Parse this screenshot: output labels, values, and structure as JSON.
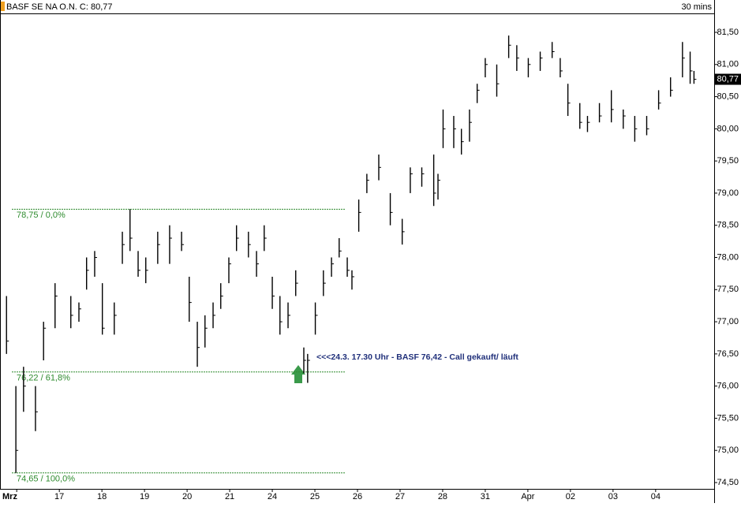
{
  "chart_data": {
    "type": "ohlc",
    "title": "BASF SE NA O.N. C: 80,77",
    "interval": "30 mins",
    "color": "#000000",
    "x": [
      0.06,
      0.28,
      0.46,
      0.74,
      0.93,
      1.2,
      1.57,
      1.76,
      1.94,
      2.13,
      2.31,
      2.59,
      2.78,
      2.96,
      3.15,
      3.33,
      3.61,
      3.89,
      4.17,
      4.35,
      4.54,
      4.72,
      4.91,
      5.09,
      5.28,
      5.46,
      5.74,
      5.93,
      6.11,
      6.3,
      6.48,
      6.67,
      6.85,
      7.04,
      7.13,
      7.31,
      7.5,
      7.69,
      7.87,
      8.06,
      8.17,
      8.33,
      8.52,
      8.8,
      9.07,
      9.35,
      9.54,
      9.81,
      10.09,
      10.19,
      10.31,
      10.56,
      10.74,
      10.93,
      11.11,
      11.3,
      11.57,
      11.85,
      12.04,
      12.31,
      12.59,
      12.87,
      13.06,
      13.24,
      13.52,
      13.7,
      13.98,
      14.26,
      14.54,
      14.81,
      15.09,
      15.37,
      15.65,
      15.93,
      16.11,
      16.2
    ],
    "high": [
      77.4,
      76.0,
      76.3,
      76.0,
      77.0,
      77.6,
      77.4,
      77.3,
      78.0,
      78.1,
      77.6,
      77.3,
      78.4,
      78.75,
      78.1,
      78.0,
      78.4,
      78.5,
      78.4,
      77.7,
      77.0,
      77.1,
      77.3,
      77.6,
      78.0,
      78.5,
      78.4,
      78.1,
      78.5,
      77.7,
      77.4,
      77.3,
      77.8,
      76.6,
      76.5,
      77.3,
      77.8,
      78.0,
      78.3,
      78.0,
      77.8,
      78.9,
      79.3,
      79.6,
      79.0,
      78.6,
      79.4,
      79.4,
      79.6,
      79.3,
      80.3,
      80.2,
      80.0,
      80.3,
      80.7,
      81.1,
      81.0,
      81.45,
      81.3,
      81.1,
      81.2,
      81.35,
      81.1,
      80.7,
      80.4,
      80.2,
      80.4,
      80.6,
      80.3,
      80.2,
      80.2,
      80.6,
      80.8,
      81.35,
      81.2,
      80.9
    ],
    "low": [
      76.5,
      74.65,
      75.6,
      75.3,
      76.4,
      76.9,
      76.9,
      77.0,
      77.5,
      77.7,
      76.8,
      76.8,
      77.9,
      78.1,
      77.7,
      77.6,
      77.9,
      77.9,
      78.1,
      77.0,
      76.3,
      76.6,
      76.9,
      77.2,
      77.6,
      78.1,
      78.0,
      77.7,
      78.1,
      77.2,
      76.8,
      76.9,
      77.4,
      76.2,
      76.05,
      76.8,
      77.4,
      77.7,
      78.0,
      77.7,
      77.5,
      78.4,
      79.0,
      79.2,
      78.5,
      78.2,
      79.0,
      79.1,
      78.8,
      78.9,
      79.7,
      79.7,
      79.6,
      79.8,
      80.4,
      80.8,
      80.5,
      81.1,
      80.9,
      80.8,
      80.9,
      81.1,
      80.8,
      80.2,
      80.0,
      79.95,
      80.1,
      80.1,
      80.0,
      79.8,
      79.9,
      80.3,
      80.5,
      80.8,
      80.7,
      80.7
    ],
    "close": [
      76.7,
      75.0,
      76.0,
      75.6,
      76.9,
      77.4,
      77.1,
      77.2,
      77.8,
      78.0,
      76.9,
      77.1,
      78.2,
      78.3,
      77.8,
      77.8,
      78.2,
      78.3,
      78.2,
      77.3,
      76.6,
      76.9,
      77.1,
      77.4,
      77.9,
      78.3,
      78.2,
      77.9,
      78.3,
      77.4,
      77.0,
      77.1,
      77.6,
      76.4,
      76.4,
      77.1,
      77.6,
      77.9,
      78.1,
      77.8,
      77.7,
      78.7,
      79.2,
      79.4,
      78.7,
      78.4,
      79.3,
      79.3,
      79.0,
      79.2,
      80.0,
      80.0,
      79.8,
      80.1,
      80.6,
      81.0,
      80.7,
      81.3,
      81.1,
      81.0,
      81.1,
      81.2,
      80.9,
      80.4,
      80.1,
      80.1,
      80.2,
      80.3,
      80.2,
      80.0,
      80.0,
      80.4,
      80.6,
      81.1,
      80.9,
      80.77
    ],
    "xlim": [
      0,
      16.6
    ],
    "xticks": [
      {
        "value": 0.3,
        "label": "Mrz"
      },
      {
        "value": 1.3,
        "label": "17"
      },
      {
        "value": 2.3,
        "label": "18"
      },
      {
        "value": 3.3,
        "label": "19"
      },
      {
        "value": 4.3,
        "label": "20"
      },
      {
        "value": 5.3,
        "label": "21"
      },
      {
        "value": 6.3,
        "label": "24"
      },
      {
        "value": 7.3,
        "label": "25"
      },
      {
        "value": 8.3,
        "label": "26"
      },
      {
        "value": 9.3,
        "label": "27"
      },
      {
        "value": 10.3,
        "label": "28"
      },
      {
        "value": 11.3,
        "label": "31"
      },
      {
        "value": 12.3,
        "label": "Apr"
      },
      {
        "value": 13.3,
        "label": "02"
      },
      {
        "value": 14.3,
        "label": "03"
      },
      {
        "value": 15.3,
        "label": "04"
      }
    ],
    "ylim": [
      74.5,
      81.5
    ],
    "yticks": [
      {
        "value": 74.5,
        "label": "74,50"
      },
      {
        "value": 75,
        "label": "75,00"
      },
      {
        "value": 75.5,
        "label": "75,50"
      },
      {
        "value": 76,
        "label": "76,00"
      },
      {
        "value": 76.5,
        "label": "76,50"
      },
      {
        "value": 77,
        "label": "77,00"
      },
      {
        "value": 77.5,
        "label": "77,50"
      },
      {
        "value": 78,
        "label": "78,00"
      },
      {
        "value": 78.5,
        "label": "78,50"
      },
      {
        "value": 79,
        "label": "79,00"
      },
      {
        "value": 79.5,
        "label": "79,50"
      },
      {
        "value": 80,
        "label": "80,00"
      },
      {
        "value": 80.5,
        "label": "80,50"
      },
      {
        "value": 81,
        "label": "81,00"
      },
      {
        "value": 81.5,
        "label": "81,50"
      }
    ],
    "last_price": {
      "value": 80.77,
      "label": "80,77"
    },
    "levels": [
      {
        "value": 78.75,
        "label": "78,75 / 0,0%"
      },
      {
        "value": 76.22,
        "label": "76,22 / 61,8%"
      },
      {
        "value": 74.65,
        "label": "74,65 / 100,0%"
      }
    ],
    "level_color": "#2e8b2e",
    "annotations": [
      {
        "text": "<<<24.3. 17.30 Uhr - BASF 76,42 - Call gekauft/ läuft",
        "color": "#1f2f7a"
      }
    ]
  }
}
